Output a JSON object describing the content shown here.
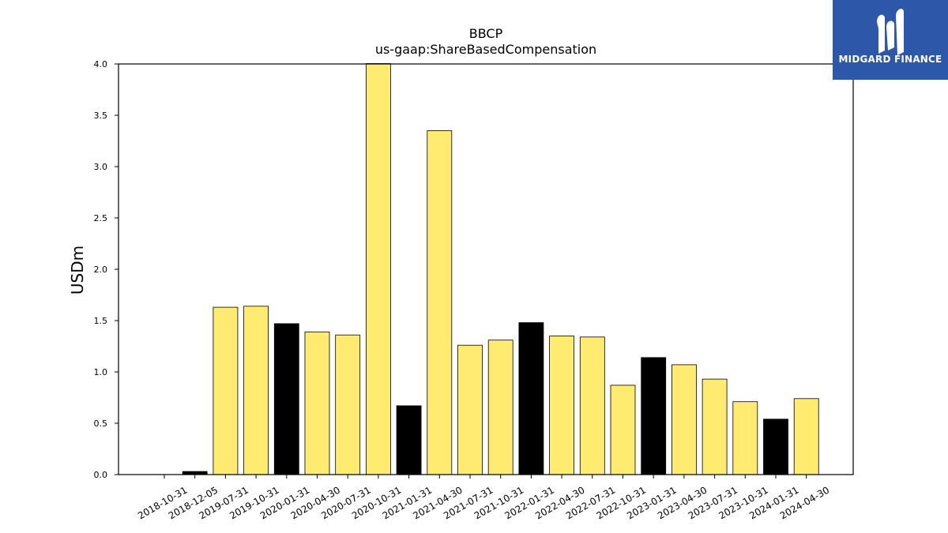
{
  "chart_data": {
    "type": "bar",
    "title": "BBCP",
    "subtitle": "us-gaap:ShareBasedCompensation",
    "xlabel": "",
    "ylabel": "USDm",
    "ylim": [
      0,
      4.0
    ],
    "yticks": [
      "0.0",
      "0.5",
      "1.0",
      "1.5",
      "2.0",
      "2.5",
      "3.0",
      "3.5",
      "4.0"
    ],
    "grid": false,
    "categories": [
      "2018-10-31",
      "2018-12-05",
      "2019-07-31",
      "2019-10-31",
      "2020-01-31",
      "2020-04-30",
      "2020-07-31",
      "2020-10-31",
      "2021-01-31",
      "2021-04-30",
      "2021-07-31",
      "2021-10-31",
      "2022-01-31",
      "2022-04-30",
      "2022-07-31",
      "2022-10-31",
      "2023-01-31",
      "2023-04-30",
      "2023-07-31",
      "2023-10-31",
      "2024-01-31",
      "2024-04-30"
    ],
    "values": [
      0.0,
      0.03,
      1.63,
      1.64,
      1.47,
      1.39,
      1.36,
      4.02,
      0.67,
      3.35,
      1.26,
      1.31,
      1.48,
      1.35,
      1.34,
      0.87,
      1.14,
      1.07,
      0.93,
      0.71,
      0.54,
      0.74
    ],
    "bar_colors": [
      "#000000",
      "#000000",
      "#ffeb70",
      "#ffeb70",
      "#000000",
      "#ffeb70",
      "#ffeb70",
      "#ffeb70",
      "#000000",
      "#ffeb70",
      "#ffeb70",
      "#ffeb70",
      "#000000",
      "#ffeb70",
      "#ffeb70",
      "#ffeb70",
      "#000000",
      "#ffeb70",
      "#ffeb70",
      "#ffeb70",
      "#000000",
      "#ffeb70"
    ]
  },
  "logo": {
    "text": "MIDGARD FINANCE",
    "background": "#2d57a8",
    "icon": "midgard-logo-icon"
  }
}
